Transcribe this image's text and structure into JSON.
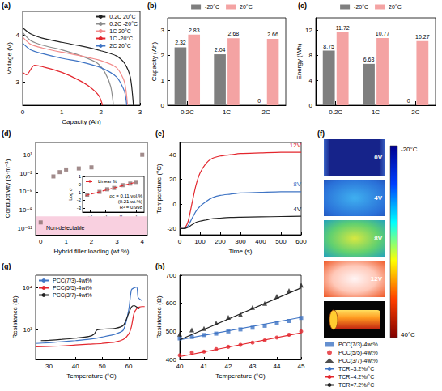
{
  "chart_data": [
    {
      "label": "(a)",
      "type": "line",
      "x_label": "Capacity (Ah)",
      "y_label": "Voltage (V)",
      "xlim": [
        0,
        3
      ],
      "xticks": [
        0,
        1,
        2,
        3
      ],
      "ylim": [
        2.5,
        4.5
      ],
      "yticks": [
        3,
        4
      ],
      "legend": "upper right",
      "series": [
        {
          "name": "0.2C 20°C",
          "color": "#222222",
          "x": [
            0,
            0.2,
            0.5,
            1,
            1.5,
            2,
            2.4,
            2.6,
            2.75,
            2.83
          ],
          "values": [
            4.15,
            4.02,
            3.93,
            3.84,
            3.76,
            3.66,
            3.55,
            3.4,
            3.1,
            2.5
          ]
        },
        {
          "name": "0.2C -20°C",
          "color": "#8c8c8c",
          "x": [
            0,
            0.2,
            0.5,
            1,
            1.5,
            1.9,
            2.1,
            2.25,
            2.32
          ],
          "values": [
            4.05,
            3.88,
            3.78,
            3.68,
            3.55,
            3.4,
            3.2,
            2.9,
            2.5
          ]
        },
        {
          "name": "1C 20°C",
          "color": "#f28b8b",
          "x": [
            0,
            0.2,
            0.5,
            1,
            1.5,
            2,
            2.4,
            2.6,
            2.68
          ],
          "values": [
            3.95,
            3.8,
            3.72,
            3.63,
            3.55,
            3.45,
            3.3,
            3.0,
            2.5
          ]
        },
        {
          "name": "1C -20°C",
          "color": "#e3262d",
          "x": [
            0,
            0.1,
            0.3,
            0.6,
            1,
            1.4,
            1.7,
            1.95,
            2.04
          ],
          "values": [
            3.2,
            3.15,
            3.35,
            3.3,
            3.2,
            3.05,
            2.9,
            2.7,
            2.5
          ]
        },
        {
          "name": "2C 20°C",
          "color": "#3f74c4",
          "x": [
            0,
            0.2,
            0.5,
            1,
            1.5,
            2,
            2.4,
            2.6,
            2.66
          ],
          "values": [
            3.82,
            3.68,
            3.6,
            3.5,
            3.42,
            3.3,
            3.1,
            2.8,
            2.5
          ]
        }
      ]
    },
    {
      "label": "(b)",
      "type": "bar",
      "y_label": "Capacity (Ah)",
      "categories": [
        "0.2C",
        "1C",
        "2C"
      ],
      "ylim": [
        0,
        3.5
      ],
      "yticks": [
        0,
        1,
        2,
        3
      ],
      "data_labels": true,
      "legend": "top",
      "series": [
        {
          "name": "-20°C",
          "color": "#7f7f7f",
          "values": [
            2.32,
            2.04,
            0
          ]
        },
        {
          "name": "20°C",
          "color": "#f4a3a3",
          "values": [
            2.83,
            2.68,
            2.66
          ]
        }
      ]
    },
    {
      "label": "(c)",
      "type": "bar",
      "y_label": "Energy (Wh)",
      "categories": [
        "0.2C",
        "1C",
        "2C"
      ],
      "ylim": [
        0,
        14
      ],
      "yticks": [
        0,
        4,
        8,
        12
      ],
      "data_labels": true,
      "legend": "top",
      "series": [
        {
          "name": "-20°C",
          "color": "#7f7f7f",
          "values": [
            8.75,
            6.63,
            0
          ]
        },
        {
          "name": "20°C",
          "color": "#f4a3a3",
          "values": [
            11.72,
            10.77,
            10.27
          ]
        }
      ]
    },
    {
      "label": "(d)",
      "type": "scatter",
      "log": "y",
      "x_label": "Hybrid filler loading (wt.%)",
      "y_label": "Conductivity (S·m⁻¹)",
      "xlim": [
        -0.2,
        4.2
      ],
      "xticks": [
        0,
        1,
        2,
        3,
        4
      ],
      "ylim": [
        1e-12,
        1000
      ],
      "yticks": [
        {
          "value": 1e-11,
          "label": "10⁻¹¹"
        },
        {
          "value": 1e-08,
          "label": "10⁻⁸"
        },
        {
          "value": 1e-05,
          "label": "10⁻⁵"
        },
        {
          "value": 0.01,
          "label": "10⁻²"
        },
        {
          "value": 10,
          "label": "10¹"
        }
      ],
      "x": [
        0,
        0.5,
        0.75,
        1,
        1.5,
        2,
        4
      ],
      "values": [
        1e-10,
        0.003,
        0.015,
        0.04,
        0.06,
        0.09,
        10
      ],
      "color": "#8a6e6e",
      "marker": "square",
      "band": {
        "label": "Non-detectable",
        "range": [
          1e-12,
          1e-09
        ],
        "color": "#f9d0e0"
      },
      "inset": {
        "type": "scatter",
        "x_label": "Log(ρ-ρc)",
        "y_label": "Log σ",
        "xlim": [
          -2.5,
          1.5
        ],
        "xticks": [
          -2,
          -1,
          0,
          1
        ],
        "ylim": [
          -3.5,
          1
        ],
        "yticks": [
          -3,
          -2,
          -1,
          0,
          1
        ],
        "legend": "upper left",
        "series": [
          {
            "type": "scatter",
            "color": "#8a6e6e",
            "marker": "square",
            "x": [
              -2.2,
              -1.4,
              -0.9,
              -0.45,
              0.1,
              0.6,
              0.95
            ],
            "values": [
              -1.3,
              -0.95,
              -0.62,
              -0.45,
              -0.1,
              0.1,
              0.3
            ]
          },
          {
            "type": "line",
            "name": "Linear fit",
            "color": "#e3262d",
            "line_style": "dashed",
            "x": [
              -2.3,
              1
            ],
            "values": [
              -1.4,
              0.3
            ]
          }
        ],
        "annotations": [
          "ρc = 0.11 vol.%",
          "(0.21 wt.%)",
          "R² = 0.998"
        ]
      }
    },
    {
      "label": "(e)",
      "type": "line",
      "x_label": "Time (s)",
      "y_label": "Temperature (°C)",
      "xlim": [
        0,
        600
      ],
      "xticks": [
        0,
        100,
        200,
        300,
        400,
        500,
        600
      ],
      "ylim": [
        -25,
        50
      ],
      "yticks": [
        -20,
        0,
        20,
        40
      ],
      "legend": "end",
      "series": [
        {
          "name": "12V",
          "color": "#e3262d",
          "x": [
            0,
            20,
            40,
            60,
            80,
            100,
            130,
            160,
            200,
            250,
            300,
            400,
            500,
            600
          ],
          "values": [
            -20,
            -20,
            -15,
            0,
            15,
            25,
            33,
            37,
            39,
            40,
            41,
            41.5,
            42,
            42
          ]
        },
        {
          "name": "8V",
          "color": "#3f74c4",
          "x": [
            0,
            20,
            40,
            60,
            80,
            100,
            130,
            160,
            200,
            250,
            300,
            400,
            500,
            600
          ],
          "values": [
            -20,
            -20,
            -18,
            -12,
            -6,
            -2,
            2,
            5,
            7,
            8,
            9,
            9.5,
            10,
            10
          ]
        },
        {
          "name": "4V",
          "color": "#222222",
          "x": [
            0,
            20,
            40,
            60,
            80,
            100,
            130,
            160,
            200,
            250,
            300,
            400,
            500,
            600
          ],
          "values": [
            -20,
            -20,
            -19,
            -17,
            -15,
            -14,
            -13,
            -12,
            -11.5,
            -11,
            -10.8,
            -10.5,
            -10.2,
            -10
          ]
        }
      ]
    },
    {
      "label": "(g)",
      "type": "line",
      "log": "y",
      "x_label": "Temperature (°C)",
      "y_label": "Resistance (Ω)",
      "xlim": [
        25,
        67
      ],
      "xticks": [
        30,
        40,
        50,
        60
      ],
      "ylim": [
        200,
        20000
      ],
      "yticks": [
        {
          "value": 1000,
          "label": "10³"
        },
        {
          "value": 10000,
          "label": "10⁴"
        }
      ],
      "legend": "upper left",
      "series": [
        {
          "name": "PCC(7/3)-4wt%",
          "color": "#3f74c4",
          "x": [
            25,
            30,
            35,
            40,
            45,
            50,
            55,
            58,
            60,
            61,
            62,
            63,
            63.5,
            64,
            65
          ],
          "values": [
            480,
            500,
            530,
            560,
            600,
            680,
            800,
            1000,
            3000,
            9000,
            10000,
            10500,
            6000,
            5500,
            5000
          ]
        },
        {
          "name": "PCC(5/5)-4wt%",
          "color": "#e3262d",
          "x": [
            25,
            30,
            35,
            40,
            45,
            50,
            55,
            58,
            60,
            61,
            62,
            63,
            64,
            65,
            66
          ],
          "values": [
            400,
            410,
            420,
            440,
            460,
            480,
            520,
            600,
            800,
            1200,
            2500,
            3200,
            3500,
            3600,
            3600
          ]
        },
        {
          "name": "PCC(3/7)-4wt%",
          "color": "#222222",
          "x": [
            27,
            30,
            35,
            40,
            45,
            47,
            48,
            50,
            55,
            58,
            60,
            61,
            62,
            63,
            64
          ],
          "values": [
            560,
            570,
            600,
            640,
            700,
            800,
            1000,
            1050,
            1100,
            1300,
            2500,
            3500,
            3800,
            3500,
            3200
          ]
        }
      ]
    },
    {
      "label": "(h)",
      "type": "scatter",
      "x_label": "Temperature (°C)",
      "y_label": "Resistance (Ω)",
      "xlim": [
        40,
        45
      ],
      "xticks": [
        40,
        41,
        42,
        43,
        44,
        45
      ],
      "ylim": [
        400,
        700
      ],
      "yticks": [
        400,
        500,
        600,
        700
      ],
      "legend": "right",
      "series": [
        {
          "name": "PCC(7/3)-4wt%",
          "color": "#3f74c4",
          "marker": "square",
          "x": [
            40,
            40.5,
            41,
            41.5,
            42,
            42.5,
            43,
            43.5,
            44,
            44.5,
            45
          ],
          "values": [
            475,
            480,
            487,
            492,
            500,
            507,
            513,
            520,
            530,
            537,
            548
          ]
        },
        {
          "name": "PCC(5/5)-4wt%",
          "color": "#e3262d",
          "marker": "circle",
          "x": [
            40,
            40.5,
            41,
            41.5,
            42,
            42.5,
            43,
            43.5,
            44,
            44.5,
            45
          ],
          "values": [
            415,
            425,
            428,
            437,
            445,
            452,
            460,
            468,
            478,
            488,
            500
          ]
        },
        {
          "name": "PCC(3/7)-4wt%",
          "color": "#222222",
          "marker": "triangle",
          "x": [
            40,
            40.5,
            41,
            41.5,
            42,
            42.5,
            43,
            43.5,
            44,
            44.5,
            45
          ],
          "values": [
            490,
            505,
            510,
            530,
            550,
            560,
            585,
            600,
            625,
            645,
            665
          ]
        },
        {
          "name": "TCR=3.2%/°C",
          "type": "line",
          "color": "#3f74c4",
          "line_style": "solid",
          "x": [
            40,
            45
          ],
          "values": [
            470,
            550
          ]
        },
        {
          "name": "TCR=4.2%/°C",
          "type": "line",
          "color": "#e3262d",
          "line_style": "solid",
          "x": [
            40,
            45
          ],
          "values": [
            410,
            495
          ]
        },
        {
          "name": "TCR=7.2%/°C",
          "type": "line",
          "color": "#222222",
          "line_style": "solid",
          "x": [
            40,
            45
          ],
          "values": [
            470,
            655
          ]
        }
      ]
    }
  ],
  "thermal_images": {
    "label": "(f)",
    "images": [
      "0V",
      "4V",
      "8V",
      "12V"
    ],
    "colorbar_labels": [
      "-20°C",
      "40°C"
    ]
  }
}
